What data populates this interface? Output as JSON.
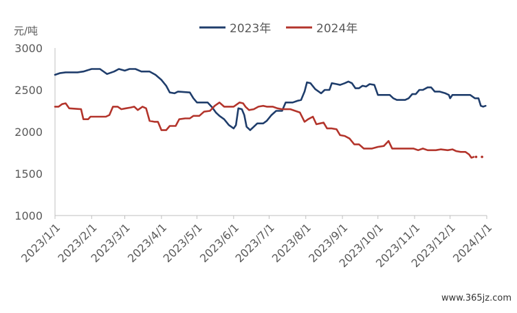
{
  "colors": {
    "series_2023": "#1f3d6b",
    "series_2024": "#b3342b",
    "axis": "#bfbfbf",
    "text": "#595959"
  },
  "watermark": "www.365jz.com",
  "chart_data": {
    "type": "line",
    "y_unit_label": "元/吨",
    "ylim": [
      1000,
      3000
    ],
    "y_ticks": [
      1000,
      1500,
      2000,
      2500,
      3000
    ],
    "x_range": [
      "2023-01-01",
      "2024-01-01"
    ],
    "x_ticks": [
      {
        "date": "2023-01-01",
        "label": "2023/1/1"
      },
      {
        "date": "2023-02-01",
        "label": "2023/2/1"
      },
      {
        "date": "2023-03-01",
        "label": "2023/3/1"
      },
      {
        "date": "2023-04-01",
        "label": "2023/4/1"
      },
      {
        "date": "2023-05-01",
        "label": "2023/5/1"
      },
      {
        "date": "2023-06-01",
        "label": "2023/6/1"
      },
      {
        "date": "2023-07-01",
        "label": "2023/7/1"
      },
      {
        "date": "2023-08-01",
        "label": "2023/8/1"
      },
      {
        "date": "2023-09-01",
        "label": "2023/9/1"
      },
      {
        "date": "2023-10-01",
        "label": "2023/10/1"
      },
      {
        "date": "2023-11-01",
        "label": "2023/11/1"
      },
      {
        "date": "2023-12-01",
        "label": "2023/12/1"
      },
      {
        "date": "2024-01-01",
        "label": "2024/1/1"
      }
    ],
    "grid": false,
    "legend_position": "top",
    "series": [
      {
        "name": "2023年",
        "color": "#1f3d6b",
        "points": [
          [
            "2023-01-01",
            2680
          ],
          [
            "2023-01-05",
            2700
          ],
          [
            "2023-01-10",
            2710
          ],
          [
            "2023-01-20",
            2710
          ],
          [
            "2023-01-25",
            2720
          ],
          [
            "2023-02-01",
            2750
          ],
          [
            "2023-02-08",
            2750
          ],
          [
            "2023-02-14",
            2690
          ],
          [
            "2023-02-20",
            2720
          ],
          [
            "2023-02-24",
            2750
          ],
          [
            "2023-03-01",
            2730
          ],
          [
            "2023-03-05",
            2750
          ],
          [
            "2023-03-10",
            2750
          ],
          [
            "2023-03-15",
            2720
          ],
          [
            "2023-03-22",
            2720
          ],
          [
            "2023-03-27",
            2680
          ],
          [
            "2023-04-01",
            2620
          ],
          [
            "2023-04-05",
            2550
          ],
          [
            "2023-04-08",
            2470
          ],
          [
            "2023-04-12",
            2460
          ],
          [
            "2023-04-15",
            2480
          ],
          [
            "2023-04-25",
            2470
          ],
          [
            "2023-04-28",
            2400
          ],
          [
            "2023-05-01",
            2350
          ],
          [
            "2023-05-10",
            2350
          ],
          [
            "2023-05-14",
            2290
          ],
          [
            "2023-05-17",
            2230
          ],
          [
            "2023-05-20",
            2190
          ],
          [
            "2023-05-24",
            2150
          ],
          [
            "2023-05-28",
            2080
          ],
          [
            "2023-06-01",
            2040
          ],
          [
            "2023-06-03",
            2080
          ],
          [
            "2023-06-05",
            2280
          ],
          [
            "2023-06-08",
            2270
          ],
          [
            "2023-06-10",
            2200
          ],
          [
            "2023-06-12",
            2060
          ],
          [
            "2023-06-15",
            2020
          ],
          [
            "2023-06-18",
            2060
          ],
          [
            "2023-06-21",
            2100
          ],
          [
            "2023-06-26",
            2100
          ],
          [
            "2023-06-29",
            2130
          ],
          [
            "2023-07-03",
            2200
          ],
          [
            "2023-07-07",
            2250
          ],
          [
            "2023-07-12",
            2250
          ],
          [
            "2023-07-15",
            2350
          ],
          [
            "2023-07-21",
            2350
          ],
          [
            "2023-07-25",
            2370
          ],
          [
            "2023-07-28",
            2380
          ],
          [
            "2023-07-31",
            2480
          ],
          [
            "2023-08-02",
            2590
          ],
          [
            "2023-08-05",
            2580
          ],
          [
            "2023-08-09",
            2510
          ],
          [
            "2023-08-14",
            2460
          ],
          [
            "2023-08-17",
            2500
          ],
          [
            "2023-08-21",
            2500
          ],
          [
            "2023-08-23",
            2580
          ],
          [
            "2023-08-27",
            2570
          ],
          [
            "2023-08-30",
            2560
          ],
          [
            "2023-09-03",
            2580
          ],
          [
            "2023-09-06",
            2600
          ],
          [
            "2023-09-09",
            2580
          ],
          [
            "2023-09-12",
            2520
          ],
          [
            "2023-09-15",
            2520
          ],
          [
            "2023-09-18",
            2550
          ],
          [
            "2023-09-21",
            2540
          ],
          [
            "2023-09-24",
            2570
          ],
          [
            "2023-09-28",
            2560
          ],
          [
            "2023-10-01",
            2440
          ],
          [
            "2023-10-05",
            2440
          ],
          [
            "2023-10-11",
            2440
          ],
          [
            "2023-10-14",
            2400
          ],
          [
            "2023-10-17",
            2380
          ],
          [
            "2023-10-24",
            2380
          ],
          [
            "2023-10-27",
            2400
          ],
          [
            "2023-10-30",
            2450
          ],
          [
            "2023-11-02",
            2450
          ],
          [
            "2023-11-05",
            2500
          ],
          [
            "2023-11-08",
            2500
          ],
          [
            "2023-11-12",
            2530
          ],
          [
            "2023-11-15",
            2530
          ],
          [
            "2023-11-18",
            2480
          ],
          [
            "2023-11-22",
            2480
          ],
          [
            "2023-11-27",
            2460
          ],
          [
            "2023-11-30",
            2440
          ],
          [
            "2023-12-01",
            2400
          ],
          [
            "2023-12-03",
            2440
          ],
          [
            "2023-12-11",
            2440
          ],
          [
            "2023-12-18",
            2440
          ],
          [
            "2023-12-22",
            2400
          ],
          [
            "2023-12-25",
            2400
          ],
          [
            "2023-12-27",
            2310
          ],
          [
            "2023-12-29",
            2300
          ],
          [
            "2023-12-31",
            2310
          ]
        ]
      },
      {
        "name": "2024年",
        "color": "#b3342b",
        "points": [
          [
            "2023-01-01",
            2300
          ],
          [
            "2023-01-04",
            2300
          ],
          [
            "2023-01-07",
            2330
          ],
          [
            "2023-01-10",
            2340
          ],
          [
            "2023-01-13",
            2280
          ],
          [
            "2023-01-23",
            2270
          ],
          [
            "2023-01-25",
            2150
          ],
          [
            "2023-01-29",
            2150
          ],
          [
            "2023-01-31",
            2180
          ],
          [
            "2023-02-08",
            2180
          ],
          [
            "2023-02-13",
            2180
          ],
          [
            "2023-02-16",
            2200
          ],
          [
            "2023-02-19",
            2300
          ],
          [
            "2023-02-23",
            2300
          ],
          [
            "2023-02-26",
            2270
          ],
          [
            "2023-03-02",
            2280
          ],
          [
            "2023-03-06",
            2290
          ],
          [
            "2023-03-09",
            2300
          ],
          [
            "2023-03-12",
            2260
          ],
          [
            "2023-03-16",
            2300
          ],
          [
            "2023-03-19",
            2280
          ],
          [
            "2023-03-22",
            2130
          ],
          [
            "2023-03-26",
            2120
          ],
          [
            "2023-03-29",
            2120
          ],
          [
            "2023-04-01",
            2020
          ],
          [
            "2023-04-05",
            2020
          ],
          [
            "2023-04-08",
            2070
          ],
          [
            "2023-04-13",
            2070
          ],
          [
            "2023-04-16",
            2150
          ],
          [
            "2023-04-21",
            2160
          ],
          [
            "2023-04-25",
            2160
          ],
          [
            "2023-04-28",
            2190
          ],
          [
            "2023-05-03",
            2190
          ],
          [
            "2023-05-07",
            2240
          ],
          [
            "2023-05-12",
            2250
          ],
          [
            "2023-05-16",
            2310
          ],
          [
            "2023-05-20",
            2350
          ],
          [
            "2023-05-24",
            2300
          ],
          [
            "2023-06-01",
            2300
          ],
          [
            "2023-06-06",
            2350
          ],
          [
            "2023-06-09",
            2340
          ],
          [
            "2023-06-11",
            2300
          ],
          [
            "2023-06-14",
            2260
          ],
          [
            "2023-06-18",
            2270
          ],
          [
            "2023-06-22",
            2300
          ],
          [
            "2023-06-26",
            2310
          ],
          [
            "2023-06-29",
            2300
          ],
          [
            "2023-07-04",
            2300
          ],
          [
            "2023-07-08",
            2280
          ],
          [
            "2023-07-12",
            2270
          ],
          [
            "2023-07-19",
            2270
          ],
          [
            "2023-07-23",
            2250
          ],
          [
            "2023-07-27",
            2230
          ],
          [
            "2023-07-31",
            2120
          ],
          [
            "2023-08-03",
            2150
          ],
          [
            "2023-08-07",
            2180
          ],
          [
            "2023-08-10",
            2090
          ],
          [
            "2023-08-13",
            2100
          ],
          [
            "2023-08-16",
            2110
          ],
          [
            "2023-08-19",
            2040
          ],
          [
            "2023-08-23",
            2040
          ],
          [
            "2023-08-27",
            2030
          ],
          [
            "2023-08-30",
            1960
          ],
          [
            "2023-09-03",
            1950
          ],
          [
            "2023-09-07",
            1920
          ],
          [
            "2023-09-11",
            1850
          ],
          [
            "2023-09-15",
            1850
          ],
          [
            "2023-09-19",
            1800
          ],
          [
            "2023-09-26",
            1800
          ],
          [
            "2023-10-01",
            1820
          ],
          [
            "2023-10-06",
            1830
          ],
          [
            "2023-10-10",
            1890
          ],
          [
            "2023-10-13",
            1800
          ],
          [
            "2023-10-20",
            1800
          ],
          [
            "2023-10-26",
            1800
          ],
          [
            "2023-10-31",
            1800
          ],
          [
            "2023-11-04",
            1780
          ],
          [
            "2023-11-08",
            1800
          ],
          [
            "2023-11-12",
            1780
          ],
          [
            "2023-11-19",
            1780
          ],
          [
            "2023-11-23",
            1790
          ],
          [
            "2023-11-29",
            1780
          ],
          [
            "2023-12-03",
            1790
          ],
          [
            "2023-12-06",
            1770
          ],
          [
            "2023-12-10",
            1760
          ],
          [
            "2023-12-14",
            1760
          ],
          [
            "2023-12-17",
            1730
          ],
          [
            "2023-12-19",
            1690
          ],
          [
            "2023-12-21",
            1700
          ]
        ],
        "dotted_points": [
          [
            "2023-12-23",
            1700
          ],
          [
            "2023-12-28",
            1700
          ]
        ]
      }
    ]
  }
}
